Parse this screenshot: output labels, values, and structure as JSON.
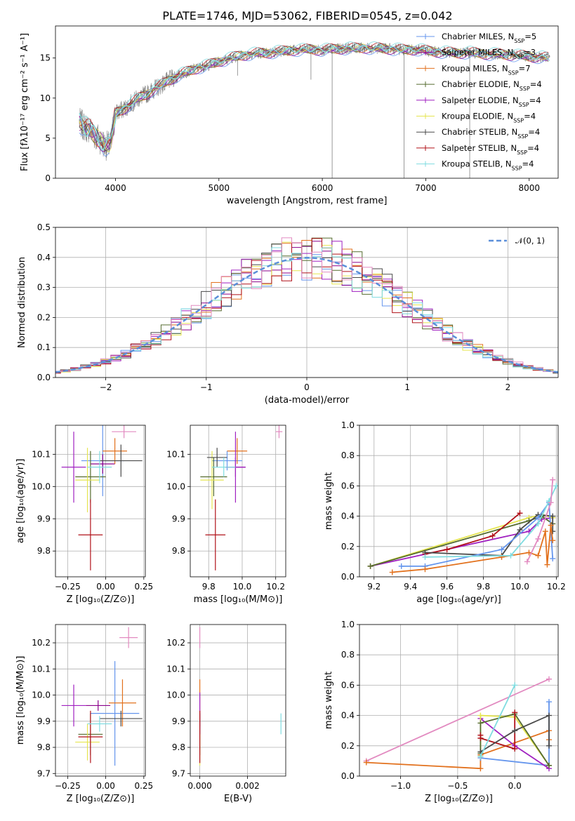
{
  "figure": {
    "title": "PLATE=1746, MJD=53062, FIBERID=0545, z=0.042"
  },
  "colors": {
    "Chabrier MILES": "#6495ed",
    "Salpeter MILES": "#8b008b",
    "Kroupa MILES": "#e2711d",
    "Chabrier ELODIE": "#556b2f",
    "Salpeter ELODIE": "#a020c0",
    "Kroupa ELODIE": "#e5e550",
    "Chabrier STELIB": "#4a4a4a",
    "Salpeter STELIB": "#b01018",
    "Kroupa STELIB": "#7fdce0",
    "data": "#808080",
    "normal": "#5b8fd9",
    "chart7": "#e28ac0"
  },
  "chart_data": [
    {
      "id": "spectrum",
      "type": "line",
      "xlabel": "wavelength [Angstrom, rest frame]",
      "ylabel": "Flux [fλ10⁻¹⁷ erg cm⁻² s⁻¹ A⁻¹]",
      "xlim": [
        3420,
        8280
      ],
      "ylim": [
        0,
        19
      ],
      "xticks": [
        4000,
        5000,
        6000,
        7000,
        8000
      ],
      "yticks": [
        0,
        5,
        10,
        15
      ],
      "grid": false,
      "legend_position": "top-right",
      "legend": [
        {
          "name": "Chabrier MILES",
          "nssp": "5"
        },
        {
          "name": "Salpeter MILES",
          "nssp": "3"
        },
        {
          "name": "Kroupa MILES",
          "nssp": "7"
        },
        {
          "name": "Chabrier ELODIE",
          "nssp": "4"
        },
        {
          "name": "Salpeter ELODIE",
          "nssp": "4"
        },
        {
          "name": "Kroupa ELODIE",
          "nssp": "4"
        },
        {
          "name": "Chabrier STELIB",
          "nssp": "4"
        },
        {
          "name": "Salpeter STELIB",
          "nssp": "4"
        },
        {
          "name": "Kroupa STELIB",
          "nssp": "4"
        }
      ],
      "continuum": {
        "x": [
          3650,
          3700,
          3750,
          3800,
          3850,
          3900,
          3950,
          4000,
          4100,
          4200,
          4300,
          4400,
          4500,
          4600,
          4700,
          4800,
          4900,
          5000,
          5100,
          5200,
          5300,
          5400,
          5500,
          5600,
          5700,
          5800,
          5900,
          6000,
          6100,
          6200,
          6300,
          6400,
          6500,
          6600,
          6700,
          6800,
          6900,
          7000,
          7100,
          7200,
          7300,
          7400,
          7500,
          7600,
          7700,
          7800,
          7900,
          8000,
          8100,
          8200
        ],
        "y": [
          7.0,
          6.4,
          6.2,
          5.3,
          4.9,
          4.1,
          4.0,
          8.1,
          8.8,
          9.8,
          10.5,
          11.3,
          12.1,
          12.8,
          13.3,
          13.8,
          14.1,
          14.6,
          14.9,
          15.3,
          15.5,
          15.6,
          15.7,
          15.8,
          16.0,
          16.0,
          16.1,
          16.0,
          16.1,
          16.2,
          16.2,
          16.3,
          16.2,
          16.2,
          16.1,
          16.0,
          16.1,
          15.9,
          15.8,
          15.7,
          15.6,
          15.7,
          15.6,
          15.5,
          15.5,
          15.4,
          15.3,
          15.2,
          15.1,
          15.0
        ]
      },
      "spikes_down": [
        {
          "x": 6095,
          "y": 0
        },
        {
          "x": 6790,
          "y": 0
        },
        {
          "x": 7425,
          "y": 0
        },
        {
          "x": 5890,
          "y": 12.3
        },
        {
          "x": 5180,
          "y": 12.8
        }
      ]
    },
    {
      "id": "residuals",
      "type": "line",
      "xlabel": "(data-model)/error",
      "ylabel": "Normed distribution",
      "xlim": [
        -2.5,
        2.5
      ],
      "ylim": [
        0,
        0.5
      ],
      "xticks": [
        -2,
        -1,
        0,
        1,
        2
      ],
      "yticks": [
        0.0,
        0.1,
        0.2,
        0.3,
        0.4,
        0.5
      ],
      "grid": true,
      "legend_position": "top-right",
      "legend_label": "𝒩(0, 1)",
      "bin_width": 0.1
    },
    {
      "id": "age_vs_Z",
      "type": "scatter",
      "xlabel": "Z [log₁₀(Z/Z⊙)]",
      "ylabel": "age  [log₁₀(age/yr)]",
      "xlim": [
        -0.33,
        0.26
      ],
      "ylim": [
        9.72,
        10.19
      ],
      "xticks": [
        -0.25,
        0,
        0.25
      ],
      "xticklabels": [
        "−0.25",
        "0.00",
        "0.25"
      ],
      "yticks": [
        9.8,
        9.9,
        10.0,
        10.1
      ],
      "yticklabels": [
        "9.8",
        "9.9",
        "10.0",
        "10.1"
      ],
      "grid": true,
      "points": [
        {
          "series": "Chabrier MILES",
          "x": -0.02,
          "xerr": 0.14,
          "y": 10.08,
          "yerr": 0.11
        },
        {
          "series": "Salpeter MILES",
          "x": -0.02,
          "xerr": 0.08,
          "y": 10.07,
          "yerr": 0.03
        },
        {
          "series": "Kroupa MILES",
          "x": 0.06,
          "xerr": 0.08,
          "y": 10.11,
          "yerr": 0.04
        },
        {
          "series": "Chabrier ELODIE",
          "x": -0.1,
          "xerr": 0.1,
          "y": 10.03,
          "yerr": 0.08
        },
        {
          "series": "Salpeter ELODIE",
          "x": -0.21,
          "xerr": 0.08,
          "y": 10.06,
          "yerr": 0.11
        },
        {
          "series": "Kroupa ELODIE",
          "x": -0.12,
          "xerr": 0.08,
          "y": 10.02,
          "yerr": 0.1
        },
        {
          "series": "Chabrier STELIB",
          "x": 0.1,
          "xerr": 0.14,
          "y": 10.08,
          "yerr": 0.05
        },
        {
          "series": "Salpeter STELIB",
          "x": -0.1,
          "xerr": 0.08,
          "y": 9.85,
          "yerr": 0.11
        },
        {
          "series": "Kroupa STELIB",
          "x": -0.04,
          "xerr": 0.08,
          "y": 10.06,
          "yerr": 0.05
        },
        {
          "series": "chart7",
          "x": 0.12,
          "xerr": 0.08,
          "y": 10.17,
          "yerr": 0.02
        }
      ]
    },
    {
      "id": "age_vs_mass",
      "type": "scatter",
      "xlabel": "mass [log₁₀(M/M⊙)]",
      "ylabel": "",
      "xlim": [
        9.69,
        10.26
      ],
      "ylim": [
        9.72,
        10.19
      ],
      "xticks": [
        9.8,
        10.0,
        10.2
      ],
      "xticklabels": [
        "9.8",
        "10.0",
        "10.2"
      ],
      "yticks": [
        9.8,
        9.9,
        10.0,
        10.1
      ],
      "yticklabels": [
        "9.8",
        "9.9",
        "10.0",
        "10.1"
      ],
      "grid": true,
      "points": [
        {
          "series": "Chabrier MILES",
          "x": 9.91,
          "xerr": 0.09,
          "y": 10.08,
          "yerr": 0.03
        },
        {
          "series": "Salpeter MILES",
          "x": 9.96,
          "xerr": 0.06,
          "y": 10.06,
          "yerr": 0.03
        },
        {
          "series": "Kroupa MILES",
          "x": 9.97,
          "xerr": 0.06,
          "y": 10.11,
          "yerr": 0.04
        },
        {
          "series": "Chabrier ELODIE",
          "x": 9.83,
          "xerr": 0.08,
          "y": 10.03,
          "yerr": 0.06
        },
        {
          "series": "Salpeter ELODIE",
          "x": 9.96,
          "xerr": 0.06,
          "y": 10.06,
          "yerr": 0.11
        },
        {
          "series": "Kroupa ELODIE",
          "x": 9.82,
          "xerr": 0.07,
          "y": 10.02,
          "yerr": 0.09
        },
        {
          "series": "Chabrier STELIB",
          "x": 9.85,
          "xerr": 0.06,
          "y": 10.09,
          "yerr": 0.03
        },
        {
          "series": "Salpeter STELIB",
          "x": 9.84,
          "xerr": 0.06,
          "y": 9.85,
          "yerr": 0.11
        },
        {
          "series": "Kroupa STELIB",
          "x": 9.89,
          "xerr": 0.07,
          "y": 10.06,
          "yerr": 0.03
        },
        {
          "series": "chart7",
          "x": 10.22,
          "xerr": 0.02,
          "y": 10.17,
          "yerr": 0.02
        }
      ]
    },
    {
      "id": "mass_weight_vs_age",
      "type": "line",
      "xlabel": "age  [log₁₀(age/yr)]",
      "ylabel": "mass weight",
      "xlim": [
        9.12,
        10.21
      ],
      "ylim": [
        0,
        1
      ],
      "xticks": [
        9.2,
        9.4,
        9.6,
        9.8,
        10.0,
        10.2
      ],
      "xticklabels": [
        "9.2",
        "9.4",
        "9.6",
        "9.8",
        "10.0",
        "10.2"
      ],
      "yticks": [
        0,
        0.2,
        0.4,
        0.6,
        0.8,
        1
      ],
      "yticklabels": [
        "0.0",
        "0.2",
        "0.4",
        "0.6",
        "0.8",
        "1.0"
      ],
      "grid": true,
      "series": [
        {
          "name": "Salpeter ELODIE",
          "x": [
            9.18,
            10.05,
            10.12,
            10.18
          ],
          "y": [
            0.07,
            0.3,
            0.38,
            0.39
          ]
        },
        {
          "name": "Kroupa ELODIE",
          "x": [
            9.18,
            10.05,
            10.12,
            10.18
          ],
          "y": [
            0.07,
            0.39,
            0.41,
            0.39
          ]
        },
        {
          "name": "Chabrier ELODIE",
          "x": [
            9.18,
            10.05,
            10.12,
            10.18
          ],
          "y": [
            0.07,
            0.37,
            0.4,
            0.35
          ]
        },
        {
          "name": "Salpeter STELIB",
          "x": [
            9.48,
            9.6,
            9.85,
            10.0
          ],
          "y": [
            0.15,
            0.18,
            0.27,
            0.42
          ]
        },
        {
          "name": "Chabrier STELIB",
          "x": [
            9.48,
            9.9,
            10.0,
            10.1,
            10.18,
            10.18
          ],
          "y": [
            0.16,
            0.14,
            0.31,
            0.41,
            0.4,
            0.3
          ]
        },
        {
          "name": "Chabrier MILES",
          "x": [
            9.35,
            9.48,
            9.9,
            10.1,
            10.16,
            10.18
          ],
          "y": [
            0.07,
            0.07,
            0.18,
            0.39,
            0.49,
            0.12
          ]
        },
        {
          "name": "Kroupa MILES",
          "x": [
            9.3,
            9.48,
            9.9,
            10.05,
            10.1,
            10.14,
            10.15,
            10.17,
            10.18
          ],
          "y": [
            0.03,
            0.05,
            0.13,
            0.16,
            0.14,
            0.3,
            0.08,
            0.34,
            0.24
          ]
        },
        {
          "name": "Kroupa STELIB",
          "x": [
            9.48,
            9.95,
            10.1,
            10.16,
            10.2
          ],
          "y": [
            0.13,
            0.14,
            0.35,
            0.5,
            0.6
          ]
        },
        {
          "name": "chart7",
          "x": [
            10.04,
            10.1,
            10.17,
            10.18
          ],
          "y": [
            0.1,
            0.25,
            0.49,
            0.64
          ]
        }
      ]
    },
    {
      "id": "mass_vs_Z",
      "type": "scatter",
      "xlabel": "Z [log₁₀(Z/Z⊙)]",
      "ylabel": "mass [log₁₀(M/M⊙)]",
      "xlim": [
        -0.33,
        0.26
      ],
      "ylim": [
        9.69,
        10.27
      ],
      "xticks": [
        -0.25,
        0,
        0.25
      ],
      "xticklabels": [
        "−0.25",
        "0.00",
        "0.25"
      ],
      "yticks": [
        9.7,
        9.8,
        9.9,
        10.0,
        10.1,
        10.2
      ],
      "yticklabels": [
        "9.7",
        "9.8",
        "9.9",
        "10.0",
        "10.1",
        "10.2"
      ],
      "grid": true,
      "points": [
        {
          "series": "Chabrier MILES",
          "x": 0.06,
          "xerr": 0.16,
          "y": 9.93,
          "yerr": 0.2
        },
        {
          "series": "Salpeter MILES",
          "x": -0.05,
          "xerr": 0.08,
          "y": 9.96,
          "yerr": 0.02
        },
        {
          "series": "Kroupa MILES",
          "x": 0.11,
          "xerr": 0.09,
          "y": 9.97,
          "yerr": 0.09
        },
        {
          "series": "Chabrier ELODIE",
          "x": -0.1,
          "xerr": 0.08,
          "y": 9.85,
          "yerr": 0.08
        },
        {
          "series": "Salpeter ELODIE",
          "x": -0.21,
          "xerr": 0.08,
          "y": 9.96,
          "yerr": 0.08
        },
        {
          "series": "Kroupa ELODIE",
          "x": -0.12,
          "xerr": 0.08,
          "y": 9.82,
          "yerr": 0.07
        },
        {
          "series": "Chabrier STELIB",
          "x": 0.1,
          "xerr": 0.14,
          "y": 9.91,
          "yerr": 0.03
        },
        {
          "series": "Salpeter STELIB",
          "x": -0.1,
          "xerr": 0.08,
          "y": 9.84,
          "yerr": 0.1
        },
        {
          "series": "Kroupa STELIB",
          "x": -0.04,
          "xerr": 0.08,
          "y": 9.89,
          "yerr": 0.03
        },
        {
          "series": "chart7",
          "x": 0.15,
          "xerr": 0.06,
          "y": 10.22,
          "yerr": 0.04
        }
      ]
    },
    {
      "id": "mass_vs_ebv",
      "type": "scatter",
      "xlabel": "E(B-V)",
      "ylabel": "",
      "xlim": [
        -0.0004,
        0.0036
      ],
      "ylim": [
        9.69,
        10.27
      ],
      "xticks": [
        0,
        0.002
      ],
      "xticklabels": [
        "0.000",
        "0.002"
      ],
      "yticks": [
        9.7,
        9.8,
        9.9,
        10.0,
        10.1,
        10.2
      ],
      "yticklabels": [
        "9.7",
        "9.8",
        "9.9",
        "10.0",
        "10.1",
        "10.2"
      ],
      "grid": true,
      "points": [
        {
          "series": "Kroupa MILES",
          "x": 0.0,
          "y": 9.97,
          "yerr": 0.09
        },
        {
          "series": "Chabrier ELODIE",
          "x": 0.0,
          "y": 9.85,
          "yerr": 0.08
        },
        {
          "series": "Kroupa ELODIE",
          "x": 0.0,
          "y": 9.8,
          "yerr": 0.07
        },
        {
          "series": "Salpeter ELODIE",
          "x": 0.0,
          "y": 9.93,
          "yerr": 0.08
        },
        {
          "series": "Salpeter STELIB",
          "x": 0.0,
          "y": 9.84,
          "yerr": 0.1
        },
        {
          "series": "chart7",
          "x": 0.0,
          "y": 10.22,
          "yerr": 0.04
        },
        {
          "series": "Kroupa STELIB",
          "x": 0.0034,
          "y": 9.89,
          "yerr": 0.04
        }
      ]
    },
    {
      "id": "mass_weight_vs_Z",
      "type": "line",
      "xlabel": "Z [log₁₀(Z/Z⊙)]",
      "ylabel": "mass weight",
      "xlim": [
        -1.36,
        0.38
      ],
      "ylim": [
        0,
        1
      ],
      "xticks": [
        -1.0,
        -0.5,
        0.0
      ],
      "xticklabels": [
        "−1.0",
        "−0.5",
        "0.0"
      ],
      "yticks": [
        0,
        0.2,
        0.4,
        0.6,
        0.8,
        1
      ],
      "yticklabels": [
        "0.0",
        "0.2",
        "0.4",
        "0.6",
        "0.8",
        "1.0"
      ],
      "grid": true,
      "series": [
        {
          "name": "chart7",
          "x": [
            -1.3,
            0.3
          ],
          "y": [
            0.1,
            0.64
          ]
        },
        {
          "name": "Kroupa MILES",
          "x": [
            -1.3,
            -0.3,
            -0.3,
            0.3,
            0.3
          ],
          "y": [
            0.09,
            0.05,
            0.14,
            0.3,
            0.24
          ]
        },
        {
          "name": "Chabrier MILES",
          "x": [
            -0.3,
            0.3,
            0.3
          ],
          "y": [
            0.12,
            0.07,
            0.49
          ]
        },
        {
          "name": "Salpeter ELODIE",
          "x": [
            -0.3,
            0.0,
            0.3
          ],
          "y": [
            0.38,
            0.2,
            0.05
          ]
        },
        {
          "name": "Kroupa ELODIE",
          "x": [
            -0.3,
            -0.3,
            0.0,
            0.3
          ],
          "y": [
            0.13,
            0.4,
            0.39,
            0.07
          ]
        },
        {
          "name": "Chabrier ELODIE",
          "x": [
            -0.3,
            -0.3,
            0.0,
            0.3
          ],
          "y": [
            0.15,
            0.35,
            0.41,
            0.07
          ]
        },
        {
          "name": "Salpeter STELIB",
          "x": [
            -0.3,
            -0.3,
            0.0,
            0.0
          ],
          "y": [
            0.27,
            0.25,
            0.18,
            0.42
          ]
        },
        {
          "name": "Chabrier STELIB",
          "x": [
            -0.3,
            0.0,
            0.3,
            0.3
          ],
          "y": [
            0.16,
            0.3,
            0.4,
            0.2
          ]
        },
        {
          "name": "Kroupa STELIB",
          "x": [
            -0.3,
            0.0
          ],
          "y": [
            0.13,
            0.6
          ]
        }
      ]
    }
  ]
}
